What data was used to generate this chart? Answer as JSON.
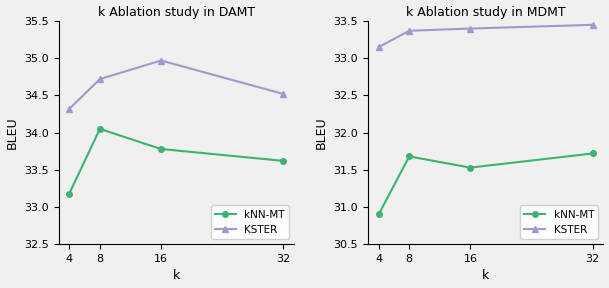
{
  "damt": {
    "title": "k Ablation study in DAMT",
    "x": [
      4,
      8,
      16,
      32
    ],
    "knn_mt": [
      33.18,
      34.05,
      33.78,
      33.62
    ],
    "kster": [
      34.32,
      34.72,
      34.97,
      34.52
    ],
    "ylim": [
      32.5,
      35.5
    ],
    "yticks": [
      32.5,
      33.0,
      33.5,
      34.0,
      34.5,
      35.0,
      35.5
    ],
    "xlabel": "k",
    "ylabel": "BLEU"
  },
  "mdmt": {
    "title": "k Ablation study in MDMT",
    "x": [
      4,
      8,
      16,
      32
    ],
    "knn_mt": [
      30.9,
      31.68,
      31.53,
      31.72
    ],
    "kster": [
      33.15,
      33.37,
      33.4,
      33.45
    ],
    "ylim": [
      30.5,
      33.5
    ],
    "yticks": [
      30.5,
      31.0,
      31.5,
      32.0,
      32.5,
      33.0,
      33.5
    ],
    "xlabel": "k",
    "ylabel": "BLEU"
  },
  "knn_mt_color": "#3cb371",
  "kster_color": "#9e9bc8",
  "knn_mt_marker": "o",
  "kster_marker": "^",
  "legend_labels": [
    "kNN-MT",
    "KSTER"
  ],
  "linewidth": 1.5,
  "markersize": 4,
  "bg_color": "#f0f0f0",
  "fig_bg_color": "#f0f0f0"
}
